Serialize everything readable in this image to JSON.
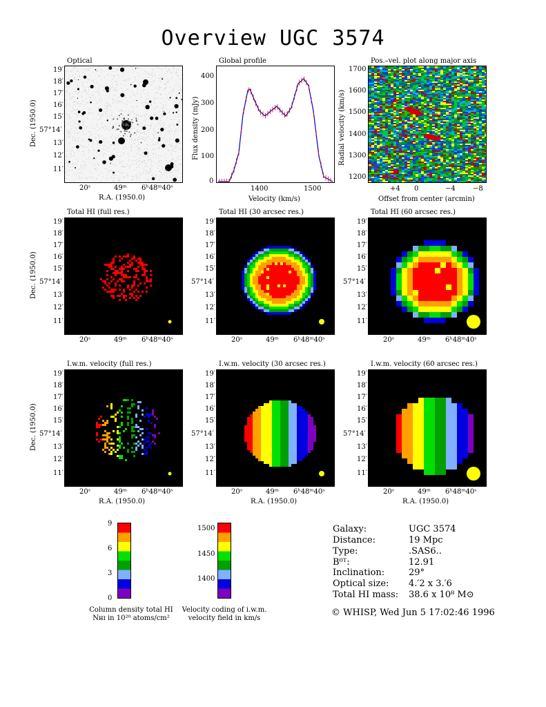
{
  "title": "Overview UGC 3574",
  "panels": {
    "optical": "Optical",
    "global_profile": "Global profile",
    "pv": "Pos.–vel. plot along major axis",
    "hi_full": "Total HI (full res.)",
    "hi_30": "Total HI (30 arcsec res.)",
    "hi_60": "Total HI (60 arcsec res.)",
    "vel_full": "I.w.m. velocity (full res.)",
    "vel_30": "I.w.m. velocity (30 arcsec res.)",
    "vel_60": "I.w.m. velocity (60 arcsec res.)"
  },
  "sky_axes": {
    "dec_label": "Dec. (1950.0)",
    "ra_label": "R.A. (1950.0)",
    "dec_ticks": [
      "19′",
      "18′",
      "17′",
      "16′",
      "15′",
      "57°14′",
      "13′",
      "12′",
      "11′"
    ],
    "ra_ticks": [
      "20ˢ",
      "49ᵐ",
      "6ʰ48ᵐ40ˢ"
    ]
  },
  "profile": {
    "xlabel": "Velocity (km/s)",
    "ylabel": "Flux density (mJy)",
    "xticks": [
      "1400",
      "1500"
    ],
    "yticks": [
      "0",
      "100",
      "200",
      "300",
      "400"
    ]
  },
  "pv_axes": {
    "xlabel": "Offset from center (arcmin)",
    "ylabel": "Radial velocity (km/s)",
    "xticks": [
      "+4",
      "0",
      "−4",
      "−8"
    ],
    "yticks": [
      "1700",
      "1600",
      "1500",
      "1400",
      "1300",
      "1200"
    ]
  },
  "colorbar_column": {
    "ticks": [
      "9",
      "6",
      "3",
      "0"
    ],
    "caption1": "Column density total HI",
    "caption2": "Nʜɪ in 10²⁰ atoms/cm²"
  },
  "colorbar_velocity": {
    "ticks": [
      "1500",
      "1450",
      "1400"
    ],
    "caption1": "Velocity coding of i.w.m.",
    "caption2": "velocity field in km/s"
  },
  "info": [
    {
      "key": "Galaxy:",
      "value": "UGC 3574"
    },
    {
      "key": "Distance:",
      "value": "19 Mpc"
    },
    {
      "key": "Type:",
      "value": ".SAS6.."
    },
    {
      "key": "B⁰ᵀ:",
      "value": "12.91"
    },
    {
      "key": "Inclination:",
      "value": "29°"
    },
    {
      "key": "Optical size:",
      "value": "4.′2 x 3.′6"
    },
    {
      "key": "Total HI mass:",
      "value": "38.6 x 10⁸ M⊙"
    }
  ],
  "copyright": "© WHISP, Wed Jun  5 17:02:46 1996",
  "colors": {
    "scale": [
      "#8000c0",
      "#0000e0",
      "#80b0ff",
      "#00a000",
      "#00e000",
      "#ffff00",
      "#ffa000",
      "#ff0000"
    ]
  }
}
